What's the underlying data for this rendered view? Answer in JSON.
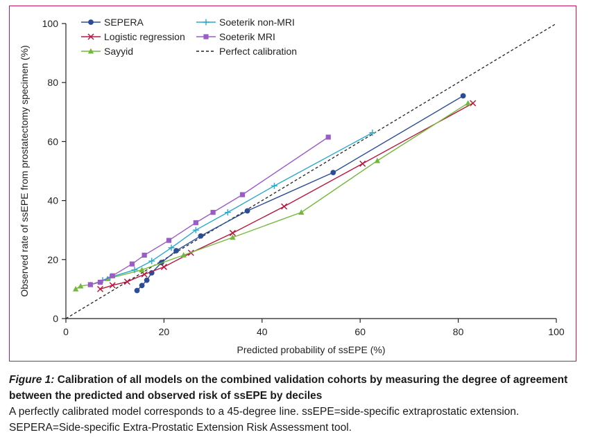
{
  "chart_data": {
    "type": "line",
    "title": "",
    "xlabel": "Predicted probability of ssEPE (%)",
    "ylabel": "Observed rate of ssEPE from prostatectomy specimen (%)",
    "xlim": [
      0,
      100
    ],
    "ylim": [
      0,
      100
    ],
    "xticks": [
      0,
      20,
      40,
      60,
      80,
      100
    ],
    "yticks": [
      0,
      20,
      40,
      60,
      80,
      100
    ],
    "xtick_labels": [
      "0",
      "20",
      "40",
      "60",
      "80",
      "100"
    ],
    "ytick_labels": [
      "0",
      "20",
      "40",
      "60",
      "80",
      "100"
    ],
    "grid": false,
    "legend_position": "top-left",
    "series": [
      {
        "name": "SEPERA",
        "color": "#2b4c97",
        "marker": "circle",
        "x": [
          14.5,
          15.5,
          16.5,
          17.5,
          19.5,
          22.5,
          27.5,
          37.0,
          54.5,
          81.0
        ],
        "y": [
          9.5,
          11.2,
          13.0,
          15.5,
          19.0,
          23.0,
          28.0,
          36.5,
          49.5,
          75.5
        ]
      },
      {
        "name": "Logistic regression",
        "color": "#b7163e",
        "marker": "x",
        "x": [
          7.0,
          9.5,
          12.5,
          16.0,
          20.0,
          25.5,
          34.0,
          44.5,
          60.5,
          83.0
        ],
        "y": [
          10.0,
          11.3,
          12.5,
          15.0,
          17.5,
          22.3,
          29.0,
          38.0,
          52.5,
          73.0
        ]
      },
      {
        "name": "Sayyid",
        "color": "#72b839",
        "marker": "triangle",
        "x": [
          2.0,
          3.0,
          5.0,
          8.5,
          15.5,
          24.0,
          34.0,
          48.0,
          63.5,
          82.0
        ],
        "y": [
          10.0,
          11.0,
          11.5,
          13.5,
          16.5,
          21.5,
          27.5,
          36.0,
          53.5,
          73.0
        ]
      },
      {
        "name": "Soeterik non-MRI",
        "color": "#27a8cc",
        "marker": "plus",
        "x": [
          7.5,
          9.0,
          14.0,
          17.5,
          21.5,
          26.5,
          33.0,
          42.5,
          62.5
        ],
        "y": [
          13.0,
          14.0,
          16.5,
          19.5,
          24.0,
          30.0,
          36.0,
          45.0,
          63.0
        ]
      },
      {
        "name": "Soeterik MRI",
        "color": "#9a5cc6",
        "marker": "square",
        "x": [
          5.0,
          7.0,
          9.5,
          13.5,
          16.0,
          21.0,
          26.5,
          30.0,
          36.0,
          53.5
        ],
        "y": [
          11.5,
          12.3,
          14.5,
          18.5,
          21.5,
          26.5,
          32.5,
          36.0,
          42.0,
          61.5
        ]
      },
      {
        "name": "Perfect calibration",
        "color": "#222222",
        "marker": "none",
        "dashed": true,
        "x": [
          0,
          100
        ],
        "y": [
          0,
          100
        ]
      }
    ]
  },
  "caption": {
    "figure_label": "Figure 1:",
    "title": " Calibration of all models on the combined validation cohorts by measuring the degree of agreement between the predicted and observed risk of ssEPE by deciles",
    "line1": "A perfectly calibrated model corresponds to a 45-degree line. ssEPE=side-specific extraprostatic extension.",
    "line2": "SEPERA=Side-specific Extra-Prostatic Extension Risk Assessment tool."
  }
}
